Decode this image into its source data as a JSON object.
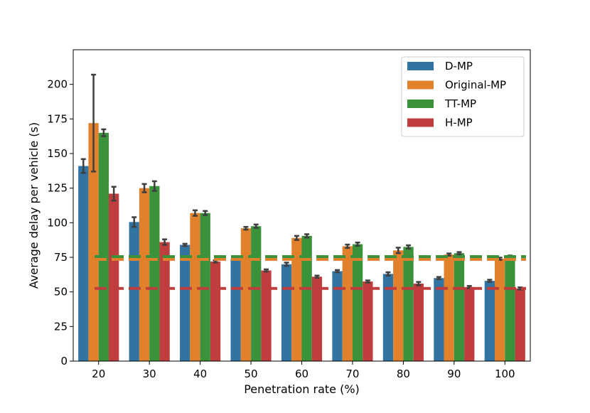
{
  "chart_data": {
    "type": "bar",
    "title": "",
    "xlabel": "Penetration rate (%)",
    "ylabel": "Average delay per vehicle (s)",
    "categories": [
      "20",
      "30",
      "40",
      "50",
      "60",
      "70",
      "80",
      "90",
      "100"
    ],
    "ylim": [
      0,
      225
    ],
    "yticks": [
      0,
      25,
      50,
      75,
      100,
      125,
      150,
      175,
      200
    ],
    "grid": false,
    "legend_position": "top-right",
    "series": [
      {
        "name": "D-MP",
        "color": "#3274a1",
        "values": [
          141,
          100.5,
          84,
          74,
          70,
          65,
          63,
          60,
          58
        ],
        "errors": [
          5,
          3.5,
          0.8,
          0.8,
          1.2,
          0.8,
          1.2,
          0.8,
          0.8
        ]
      },
      {
        "name": "Original-MP",
        "color": "#e1812c",
        "values": [
          172,
          125,
          107,
          96,
          89,
          83,
          80,
          77,
          74
        ],
        "errors": [
          35,
          3,
          2,
          1,
          1.5,
          1.2,
          2,
          0.8,
          0.8
        ]
      },
      {
        "name": "TT-MP",
        "color": "#3a923a",
        "values": [
          165,
          126.5,
          107,
          97.5,
          90.5,
          84.5,
          82.5,
          78,
          75.5
        ],
        "errors": [
          2.5,
          3.5,
          1.5,
          1.2,
          1.2,
          1.2,
          1.2,
          0.8,
          0.8
        ]
      },
      {
        "name": "H-MP",
        "color": "#c03d3e",
        "values": [
          121,
          86,
          72,
          65.5,
          61,
          57.5,
          56,
          53.5,
          52.5
        ],
        "errors": [
          5,
          2,
          0.8,
          0.8,
          0.8,
          0.8,
          1.2,
          0.8,
          0.8
        ]
      }
    ],
    "reference_lines": [
      {
        "color": "#e1812c",
        "y": 73.5
      },
      {
        "color": "#3a923a",
        "y": 75.5
      },
      {
        "color": "#c03d3e",
        "y": 52.5
      }
    ]
  }
}
